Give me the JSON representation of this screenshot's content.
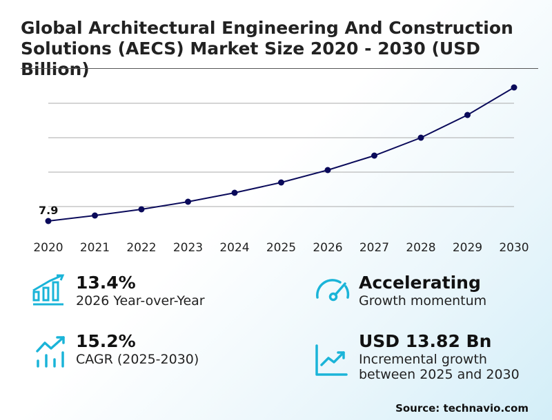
{
  "title": "Global Architectural Engineering And Construction Solutions (AECS) Market Size 2020 - 2030 (USD Billion)",
  "chart_data": {
    "type": "line",
    "title": "Global Architectural Engineering And Construction Solutions (AECS) Market Size 2020 - 2030 (USD Billion)",
    "categories": [
      "2020",
      "2021",
      "2022",
      "2023",
      "2024",
      "2025",
      "2026",
      "2027",
      "2028",
      "2029",
      "2030"
    ],
    "values": [
      7.9,
      8.7,
      9.6,
      10.7,
      12.0,
      13.5,
      15.3,
      17.4,
      20.0,
      23.3,
      27.3
    ],
    "data_labels": [
      {
        "category": "2020",
        "text": "7.9"
      }
    ],
    "ylim": [
      7,
      28
    ],
    "gridlines": [
      10,
      15,
      20,
      25
    ],
    "grid": true,
    "line_color": "#0a0a5a"
  },
  "stats": [
    {
      "value": "13.4%",
      "label": "2026 Year-over-Year",
      "icon": "bar-chart-growth-icon"
    },
    {
      "value": "Accelerating",
      "label": "Growth momentum",
      "icon": "speedometer-icon"
    },
    {
      "value": "15.2%",
      "label": "CAGR (2025-2030)",
      "icon": "trend-up-bars-icon"
    },
    {
      "value": "USD 13.82 Bn",
      "label": "Incremental growth between 2025 and 2030",
      "icon": "line-chart-up-icon"
    }
  ],
  "accent_color": "#1ab4d8",
  "source": "Source: technavio.com"
}
